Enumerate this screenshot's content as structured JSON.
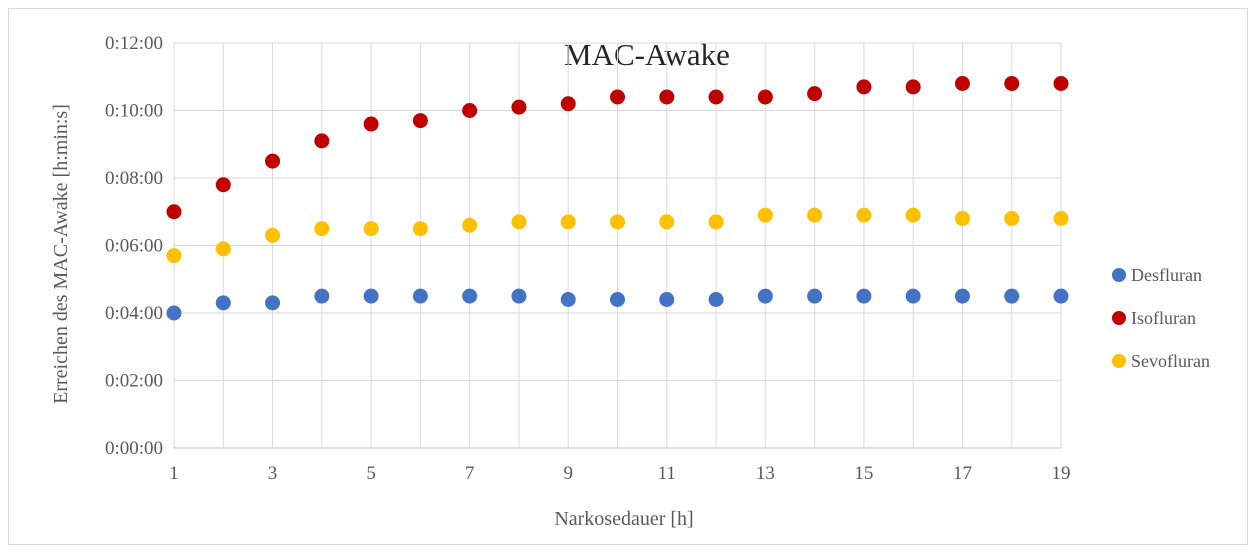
{
  "chart_data": {
    "type": "scatter",
    "title": "MAC-Awake",
    "xlabel": "Narkosedauer [h]",
    "ylabel": "Erreichen des MAC-Awake [h:min:s]",
    "xlim": [
      1,
      19
    ],
    "x_ticks": [
      "1",
      "3",
      "5",
      "7",
      "9",
      "11",
      "13",
      "15",
      "17",
      "19"
    ],
    "ylim_minutes": [
      0,
      12
    ],
    "y_ticks": [
      "0:00:00",
      "0:02:00",
      "0:04:00",
      "0:06:00",
      "0:08:00",
      "0:10:00",
      "0:12:00"
    ],
    "grid": true,
    "legend_position": "right",
    "x": [
      1,
      2,
      3,
      4,
      5,
      6,
      7,
      8,
      9,
      10,
      11,
      12,
      13,
      14,
      15,
      16,
      17,
      18,
      19
    ],
    "series": [
      {
        "name": "Desfluran",
        "color": "#4472c4",
        "values_minutes": [
          4.0,
          4.3,
          4.3,
          4.5,
          4.5,
          4.5,
          4.5,
          4.5,
          4.4,
          4.4,
          4.4,
          4.4,
          4.5,
          4.5,
          4.5,
          4.5,
          4.5,
          4.5,
          4.5
        ]
      },
      {
        "name": "Isofluran",
        "color": "#c00000",
        "values_minutes": [
          7.0,
          7.8,
          8.5,
          9.1,
          9.6,
          9.7,
          10.0,
          10.1,
          10.2,
          10.4,
          10.4,
          10.4,
          10.4,
          10.5,
          10.7,
          10.7,
          10.8,
          10.8,
          10.8
        ]
      },
      {
        "name": "Sevofluran",
        "color": "#ffc000",
        "values_minutes": [
          5.7,
          5.9,
          6.3,
          6.5,
          6.5,
          6.5,
          6.6,
          6.7,
          6.7,
          6.7,
          6.7,
          6.7,
          6.9,
          6.9,
          6.9,
          6.9,
          6.8,
          6.8,
          6.8
        ]
      }
    ]
  }
}
